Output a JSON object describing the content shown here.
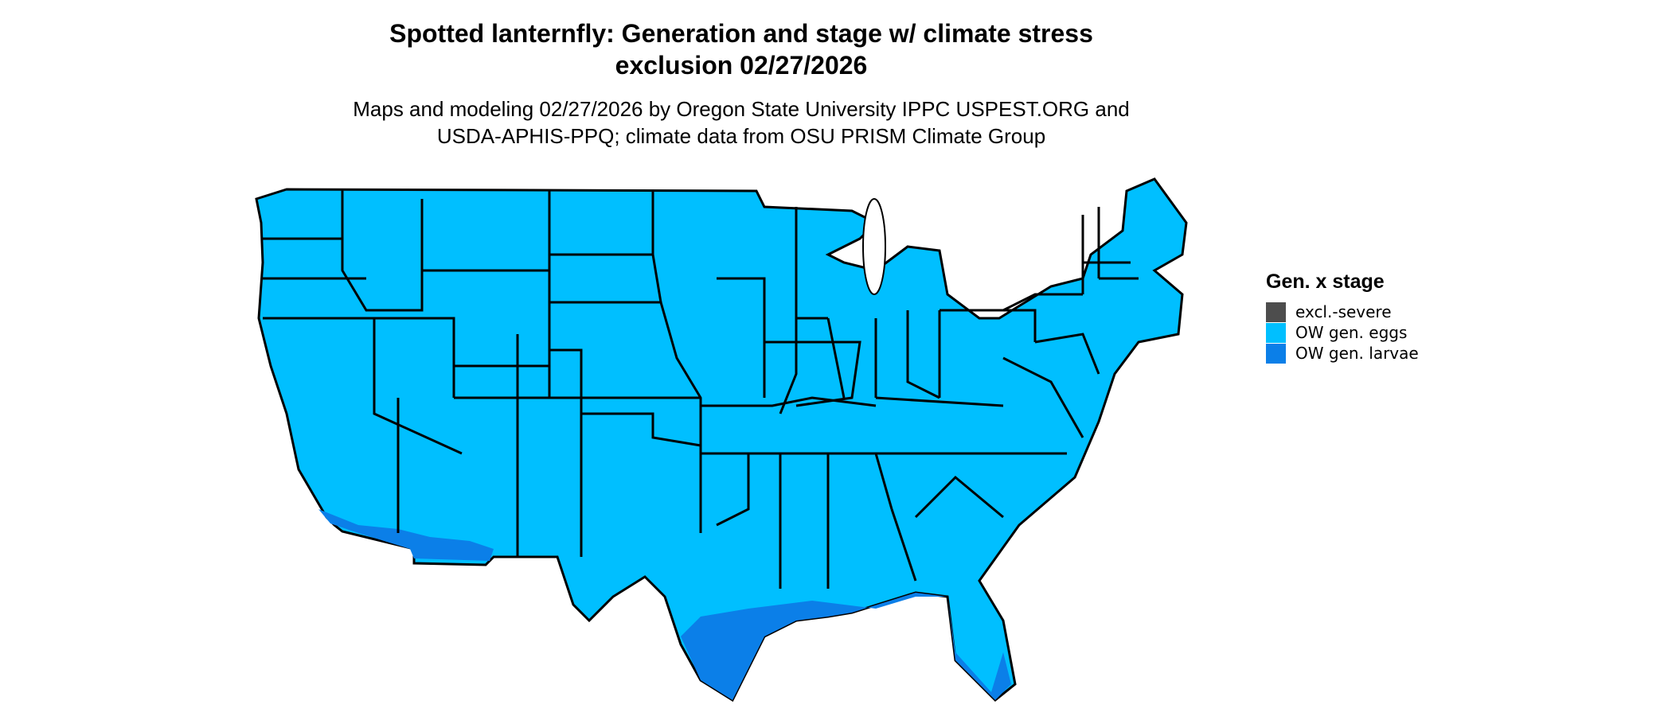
{
  "title": {
    "line1": "Spotted lanternfly: Generation and stage w/ climate stress",
    "line2": "exclusion 02/27/2026"
  },
  "subtitle": {
    "line1": "Maps and modeling 02/27/2026 by Oregon State University IPPC USPEST.ORG and",
    "line2": "USDA-APHIS-PPQ; climate data from OSU PRISM Climate Group"
  },
  "legend": {
    "title": "Gen. x stage",
    "items": [
      {
        "label": "excl.-severe",
        "color": "#4d4d4d"
      },
      {
        "label": "OW gen. eggs",
        "color": "#00bfff"
      },
      {
        "label": "OW gen. larvae",
        "color": "#0b7fe8"
      }
    ]
  },
  "colors": {
    "eggs": "#00bfff",
    "larvae": "#0b7fe8",
    "border": "#000000"
  }
}
